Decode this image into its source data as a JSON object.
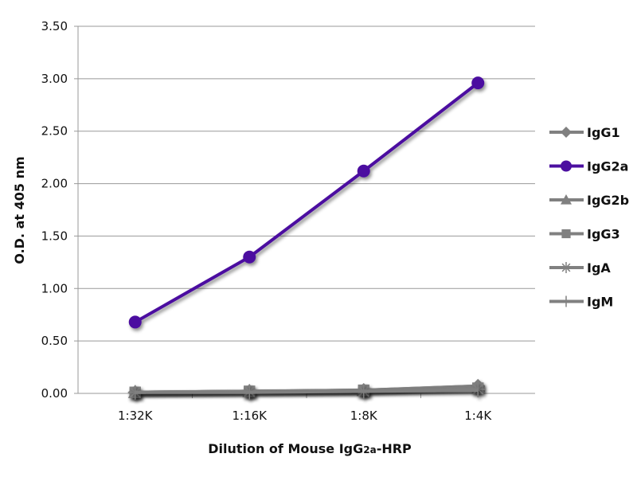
{
  "chart_data": {
    "type": "line",
    "title": "",
    "xlabel": "Dilution of Mouse IgG2a-HRP",
    "xlabel_parts": {
      "pre": "Dilution of Mouse IgG",
      "sub": "2a",
      "post": "-HRP"
    },
    "ylabel": "O.D. at 405 nm",
    "ylim": [
      0,
      3.5
    ],
    "yticks": [
      "0.00",
      "0.50",
      "1.00",
      "1.50",
      "2.00",
      "2.50",
      "3.00",
      "3.50"
    ],
    "grid": true,
    "legend_position": "right",
    "categories": [
      "1:32K",
      "1:16K",
      "1:8K",
      "1:4K"
    ],
    "series": [
      {
        "name": "IgG1",
        "marker": "diamond",
        "color": "#808080",
        "values": [
          0.01,
          0.02,
          0.03,
          0.07
        ]
      },
      {
        "name": "IgG2a",
        "marker": "circle",
        "color": "#4b0fa0",
        "values": [
          0.68,
          1.3,
          2.12,
          2.96
        ]
      },
      {
        "name": "IgG2b",
        "marker": "triangle",
        "color": "#808080",
        "values": [
          0.01,
          0.02,
          0.03,
          0.07
        ]
      },
      {
        "name": "IgG3",
        "marker": "square",
        "color": "#808080",
        "values": [
          0.01,
          0.02,
          0.03,
          0.05
        ]
      },
      {
        "name": "IgA",
        "marker": "star",
        "color": "#808080",
        "values": [
          0.01,
          0.02,
          0.02,
          0.04
        ]
      },
      {
        "name": "IgM",
        "marker": "plus",
        "color": "#808080",
        "values": [
          0.01,
          0.01,
          0.02,
          0.03
        ]
      }
    ]
  }
}
